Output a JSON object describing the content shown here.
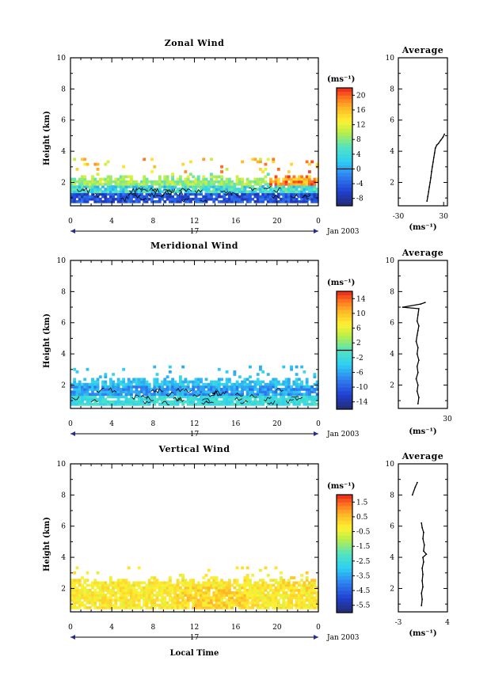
{
  "chart_data": [
    {
      "type": "heatmap",
      "title": "Zonal Wind",
      "ylabel": "Height (km)",
      "xlim": [
        0,
        24
      ],
      "ylim": [
        0.5,
        10
      ],
      "x_ticks": [
        "0",
        "4",
        "8",
        "12",
        "16",
        "20",
        "0"
      ],
      "y_ticks": [
        "2",
        "4",
        "6",
        "8",
        "10"
      ],
      "date_row": {
        "day": "17",
        "month_year": "Jan 2003"
      },
      "colorbar": {
        "unit": "(ms⁻¹)",
        "min": -10,
        "max": 22,
        "labels": [
          "20",
          "16",
          "12",
          "8",
          "4",
          "0",
          "-4",
          "-8"
        ],
        "zero_line": 0
      },
      "data_layer": {
        "bottom_km": 0.7,
        "top_km": 2.3,
        "scattered_top_km": 3.5,
        "typical_values": [
          -8,
          0,
          6,
          12
        ],
        "contour": 0
      },
      "average_profile": {
        "title": "Average",
        "xlabel": "(ms⁻¹)",
        "xlim": [
          -30,
          35
        ],
        "x_ticks": [
          "-30",
          "30"
        ],
        "ylim": [
          0.5,
          10
        ],
        "y_ticks": [
          "2",
          "4",
          "6",
          "8",
          "10"
        ],
        "points": [
          [
            8,
            0.8
          ],
          [
            9,
            1.1
          ],
          [
            10,
            1.4
          ],
          [
            11,
            1.7
          ],
          [
            12,
            2.0
          ],
          [
            13,
            2.3
          ],
          [
            14,
            2.7
          ],
          [
            15,
            3.0
          ],
          [
            16,
            3.3
          ],
          [
            17,
            3.6
          ],
          [
            18,
            3.9
          ],
          [
            19,
            4.2
          ],
          [
            21,
            4.4
          ],
          [
            23,
            4.5
          ],
          [
            26,
            4.7
          ],
          [
            29,
            4.9
          ],
          [
            31,
            5.1
          ]
        ]
      }
    },
    {
      "type": "heatmap",
      "title": "Meridional Wind",
      "ylabel": "Height (km)",
      "xlim": [
        0,
        24
      ],
      "ylim": [
        0.5,
        10
      ],
      "x_ticks": [
        "0",
        "4",
        "8",
        "12",
        "16",
        "20",
        "0"
      ],
      "y_ticks": [
        "2",
        "4",
        "6",
        "8",
        "10"
      ],
      "date_row": {
        "day": "17",
        "month_year": "Jan 2003"
      },
      "colorbar": {
        "unit": "(ms⁻¹)",
        "min": -16,
        "max": 16,
        "labels": [
          "14",
          "10",
          "6",
          "2",
          "-2",
          "-6",
          "-10",
          "-14"
        ],
        "zero_line": 0
      },
      "data_layer": {
        "bottom_km": 0.7,
        "top_km": 2.3,
        "scattered_top_km": 3.2,
        "typical_values": [
          -8,
          -6,
          -4,
          -2
        ],
        "contour": 0
      },
      "average_profile": {
        "title": "Average",
        "xlabel": "(ms⁻¹)",
        "xlim": [
          -25,
          30
        ],
        "x_ticks": [
          "30"
        ],
        "ylim": [
          0.5,
          10
        ],
        "y_ticks": [
          "2",
          "4",
          "6",
          "8",
          "10"
        ],
        "points": [
          [
            -3,
            0.8
          ],
          [
            -2,
            1.2
          ],
          [
            -4,
            1.6
          ],
          [
            -3,
            2.0
          ],
          [
            -5,
            2.4
          ],
          [
            -3,
            2.8
          ],
          [
            -4,
            3.2
          ],
          [
            -2,
            3.6
          ],
          [
            -4,
            4.0
          ],
          [
            -3,
            4.4
          ],
          [
            -5,
            4.8
          ],
          [
            -4,
            5.2
          ],
          [
            -3,
            5.5
          ],
          [
            -2,
            5.8
          ],
          [
            -4,
            6.1
          ],
          [
            -3,
            6.5
          ],
          [
            -2,
            6.9
          ],
          [
            -20,
            7.0
          ],
          [
            0,
            7.2
          ],
          [
            5,
            7.3
          ]
        ]
      }
    },
    {
      "type": "heatmap",
      "title": "Vertical Wind",
      "ylabel": "Height (km)",
      "xlabel": "Local Time",
      "xlim": [
        0,
        24
      ],
      "ylim": [
        0.5,
        10
      ],
      "x_ticks": [
        "0",
        "4",
        "8",
        "12",
        "16",
        "20",
        "0"
      ],
      "y_ticks": [
        "2",
        "4",
        "6",
        "8",
        "10"
      ],
      "date_row": {
        "day": "17",
        "month_year": "Jan 2003"
      },
      "colorbar": {
        "unit": "(ms⁻¹)",
        "min": -6,
        "max": 2,
        "labels": [
          "1.5",
          "0.5",
          "-0.5",
          "-1.5",
          "-2.5",
          "-3.5",
          "-4.5",
          "-5.5"
        ]
      },
      "data_layer": {
        "bottom_km": 0.7,
        "top_km": 2.5,
        "scattered_top_km": 3.3,
        "typical_values": [
          -0.5,
          0,
          0.5
        ]
      },
      "average_profile": {
        "title": "Average",
        "xlabel": "(ms⁻¹)",
        "xlim": [
          -3,
          4
        ],
        "x_ticks": [
          "-3",
          "4"
        ],
        "ylim": [
          0.5,
          10
        ],
        "y_ticks": [
          "2",
          "4",
          "6",
          "8",
          "10"
        ],
        "points": [
          [
            0.3,
            0.9
          ],
          [
            0.4,
            1.3
          ],
          [
            0.3,
            1.7
          ],
          [
            0.5,
            2.1
          ],
          [
            0.4,
            2.5
          ],
          [
            0.5,
            2.9
          ],
          [
            0.4,
            3.3
          ],
          [
            0.6,
            3.7
          ],
          [
            0.5,
            4.0
          ],
          [
            1.0,
            4.2
          ],
          [
            0.6,
            4.4
          ],
          [
            0.7,
            4.8
          ],
          [
            0.5,
            5.2
          ],
          [
            0.6,
            5.6
          ],
          [
            0.4,
            5.9
          ],
          [
            0.3,
            6.2
          ],
          [
            -1.0,
            8.0
          ],
          [
            -0.6,
            8.5
          ],
          [
            -0.3,
            8.8
          ]
        ]
      }
    }
  ],
  "ui": {
    "icons": {
      "date_row_arrow": "arrow-head-icon"
    }
  }
}
